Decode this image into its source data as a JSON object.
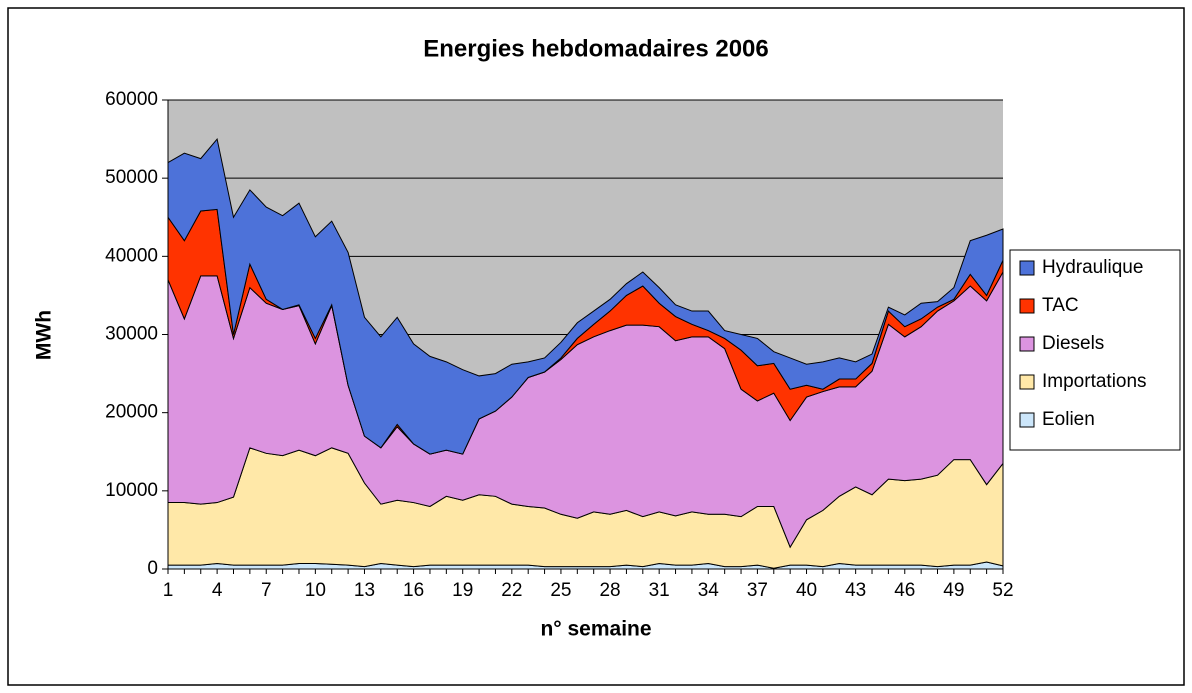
{
  "chart_data": {
    "type": "stacked_area",
    "title": "Energies hebdomadaires 2006",
    "x_label": "n° semaine",
    "y_label": "MWh",
    "categories": [
      1,
      null,
      null,
      4,
      null,
      null,
      7,
      null,
      null,
      10,
      null,
      null,
      13,
      null,
      null,
      16,
      null,
      null,
      19,
      null,
      null,
      22,
      null,
      null,
      25,
      null,
      null,
      28,
      null,
      null,
      31,
      null,
      null,
      34,
      null,
      null,
      37,
      null,
      null,
      40,
      null,
      null,
      43,
      null,
      null,
      46,
      null,
      null,
      49,
      null,
      null,
      52
    ],
    "ylim": [
      0,
      60000
    ],
    "yticks": [
      0,
      10000,
      20000,
      30000,
      40000,
      50000,
      60000
    ],
    "grid": true,
    "legend": "right",
    "series": [
      {
        "name": "Eolien",
        "color": "#cce6fa",
        "values": [
          500,
          500,
          500,
          700,
          500,
          500,
          500,
          500,
          700,
          700,
          600,
          500,
          300,
          700,
          500,
          300,
          500,
          500,
          500,
          500,
          500,
          500,
          500,
          300,
          300,
          300,
          300,
          300,
          500,
          300,
          700,
          500,
          500,
          700,
          300,
          300,
          500,
          100,
          500,
          500,
          300,
          700,
          500,
          500,
          500,
          500,
          500,
          300,
          500,
          500,
          900,
          400
        ]
      },
      {
        "name": "Importations",
        "color": "#ffe8a8",
        "values": [
          8000,
          8000,
          7800,
          7800,
          8700,
          15000,
          14300,
          14000,
          14500,
          13800,
          14900,
          14300,
          10700,
          7600,
          8300,
          8200,
          7500,
          8800,
          8300,
          9000,
          8800,
          7800,
          7500,
          7500,
          6700,
          6200,
          7000,
          6700,
          7000,
          6400,
          6600,
          6300,
          6800,
          6300,
          6700,
          6400,
          7500,
          7900,
          2300,
          5800,
          7200,
          8600,
          10000,
          9000,
          11000,
          10800,
          11000,
          11700,
          13500,
          13500,
          9900,
          13100
        ]
      },
      {
        "name": "Diesels",
        "color": "#dc94e0",
        "values": [
          28500,
          23500,
          29200,
          29000,
          20300,
          20500,
          19200,
          18700,
          18500,
          14300,
          18200,
          8700,
          6000,
          7200,
          9400,
          7500,
          6700,
          5900,
          5900,
          9700,
          10900,
          13700,
          16500,
          17400,
          19800,
          22200,
          22400,
          23500,
          23700,
          24500,
          23700,
          22400,
          22400,
          22700,
          21200,
          16300,
          13500,
          14500,
          16200,
          15700,
          15200,
          14000,
          12800,
          15800,
          19800,
          18400,
          19500,
          21000,
          20300,
          22200,
          23500,
          24500
        ]
      },
      {
        "name": "TAC",
        "color": "#ff3300",
        "values": [
          8000,
          10000,
          8300,
          8500,
          500,
          3000,
          500,
          0,
          100,
          700,
          100,
          0,
          0,
          0,
          300,
          0,
          0,
          0,
          0,
          0,
          0,
          0,
          0,
          0,
          200,
          800,
          1600,
          2500,
          3800,
          5000,
          3000,
          3100,
          1600,
          800,
          1300,
          5000,
          4500,
          3800,
          4000,
          1500,
          300,
          1000,
          1000,
          1000,
          1700,
          1300,
          1000,
          500,
          200,
          1500,
          700,
          1500
        ]
      },
      {
        "name": "Hydraulique",
        "color": "#4d72d9",
        "values": [
          7000,
          11200,
          6700,
          9000,
          15000,
          9500,
          11800,
          12000,
          13000,
          13000,
          10700,
          17000,
          15200,
          14200,
          13700,
          12800,
          12500,
          11300,
          10800,
          5500,
          4800,
          4200,
          2000,
          1800,
          2000,
          2000,
          1700,
          1500,
          1500,
          1800,
          2000,
          1500,
          1700,
          2500,
          1000,
          2000,
          3500,
          1500,
          4000,
          2700,
          3500,
          2700,
          2200,
          1200,
          500,
          1500,
          2000,
          700,
          1500,
          4300,
          7700,
          4000
        ]
      }
    ]
  }
}
